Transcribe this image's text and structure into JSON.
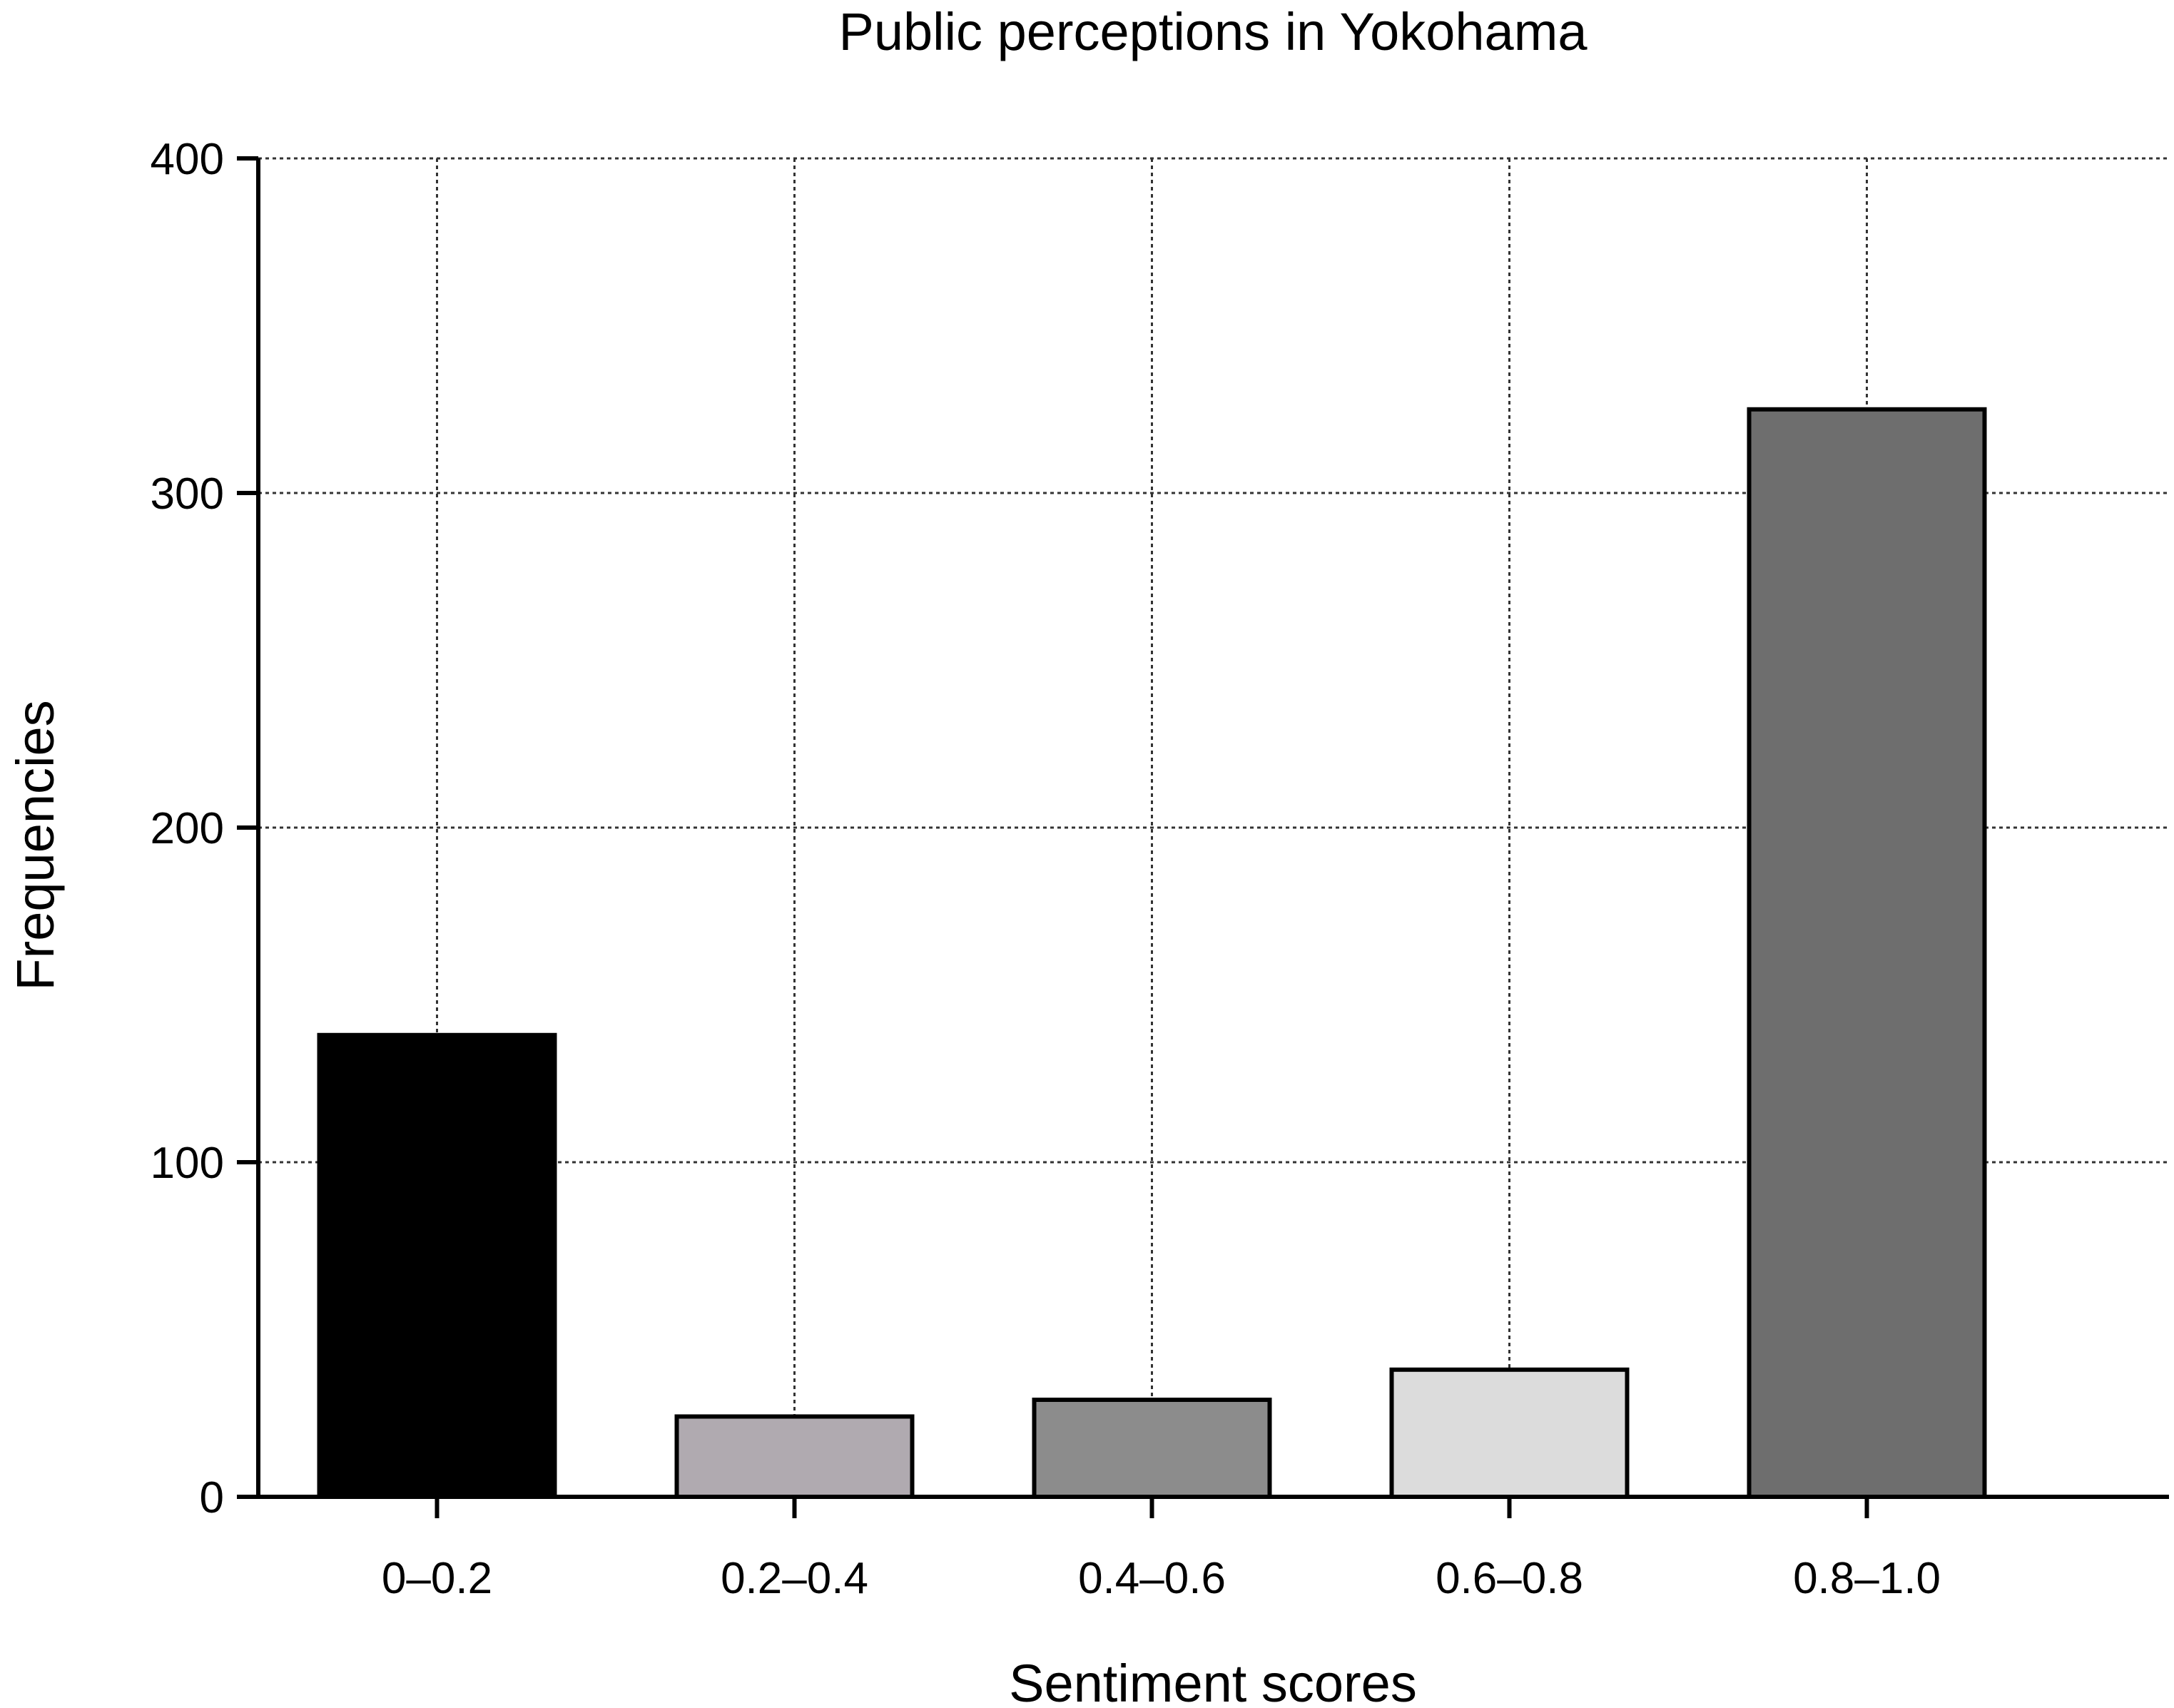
{
  "chart_data": {
    "type": "bar",
    "title": "Public perceptions in Yokohama",
    "xlabel": "Sentiment scores",
    "ylabel": "Frequencies",
    "categories": [
      "0–0.2",
      "0.2–0.4",
      "0.4–0.6",
      "0.6–0.8",
      "0.8–1.0"
    ],
    "values": [
      138,
      24,
      29,
      38,
      325
    ],
    "bar_colors": [
      "#000000",
      "#b0aab0",
      "#8c8c8c",
      "#dcdcdc",
      "#6e6e6e"
    ],
    "ylim": [
      0,
      400
    ],
    "yticks": [
      0,
      100,
      200,
      300,
      400
    ],
    "grid": true,
    "grid_style": "dotted"
  }
}
